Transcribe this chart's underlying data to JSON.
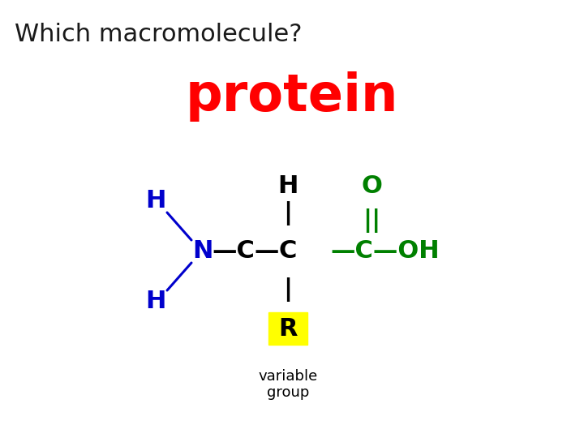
{
  "title": "Which macromolecule?",
  "answer": "protein",
  "answer_color": "#ff0000",
  "title_color": "#1a1a1a",
  "bg_color": "#ffffff",
  "title_fontsize": 22,
  "answer_fontsize": 46,
  "black": "#000000",
  "blue": "#0000cc",
  "green": "#008000",
  "yellow_bg": "#ffff00",
  "note_text": [
    "variable",
    "group"
  ],
  "struct_fontsize": 22,
  "note_fontsize": 13
}
